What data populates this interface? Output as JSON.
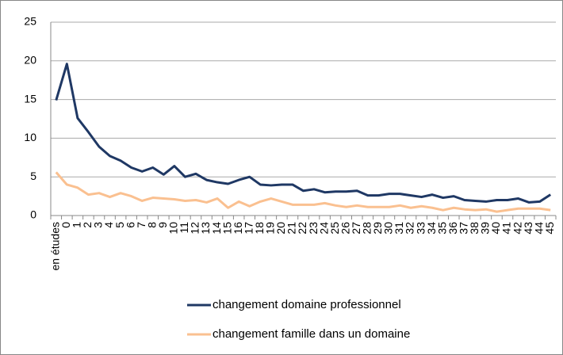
{
  "chart_data": {
    "type": "line",
    "categories": [
      "en études",
      "0",
      "1",
      "2",
      "3",
      "4",
      "5",
      "6",
      "7",
      "8",
      "9",
      "10",
      "11",
      "12",
      "13",
      "14",
      "15",
      "16",
      "17",
      "18",
      "19",
      "20",
      "21",
      "22",
      "23",
      "24",
      "25",
      "26",
      "27",
      "28",
      "29",
      "30",
      "31",
      "32",
      "33",
      "34",
      "35",
      "36",
      "37",
      "38",
      "39",
      "40",
      "41",
      "42",
      "43",
      "44",
      "45"
    ],
    "series": [
      {
        "name": "changement domaine professionnel",
        "color": "#1f3864",
        "values": [
          14.9,
          19.6,
          12.6,
          10.8,
          8.9,
          7.7,
          7.1,
          6.2,
          5.7,
          6.2,
          5.3,
          6.4,
          5.0,
          5.4,
          4.6,
          4.3,
          4.1,
          4.6,
          5.0,
          4.0,
          3.9,
          4.0,
          4.0,
          3.2,
          3.4,
          3.0,
          3.1,
          3.1,
          3.2,
          2.6,
          2.6,
          2.8,
          2.8,
          2.6,
          2.4,
          2.7,
          2.3,
          2.5,
          2.0,
          1.9,
          1.8,
          2.0,
          2.0,
          2.2,
          1.7,
          1.8,
          2.7
        ]
      },
      {
        "name": "changement famille dans un domaine",
        "color": "#fac090",
        "values": [
          5.6,
          4.0,
          3.6,
          2.7,
          2.9,
          2.4,
          2.9,
          2.5,
          1.9,
          2.3,
          2.2,
          2.1,
          1.9,
          2.0,
          1.7,
          2.2,
          1.0,
          1.8,
          1.2,
          1.8,
          2.2,
          1.8,
          1.4,
          1.4,
          1.4,
          1.6,
          1.3,
          1.1,
          1.3,
          1.1,
          1.1,
          1.1,
          1.3,
          1.0,
          1.2,
          1.0,
          0.7,
          1.0,
          0.8,
          0.7,
          0.8,
          0.5,
          0.7,
          0.9,
          0.9,
          0.9,
          0.7
        ]
      }
    ],
    "ylim": [
      0,
      25
    ],
    "yticks": [
      0,
      5,
      10,
      15,
      20,
      25
    ],
    "grid": true,
    "legend": "bottom"
  }
}
